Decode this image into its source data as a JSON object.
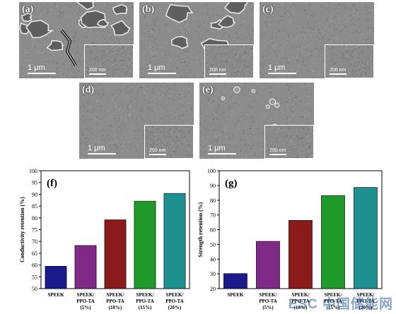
{
  "panels": [
    {
      "id": "a",
      "label": "(a)",
      "scale": "1 μm",
      "inset_scale": "200 nm",
      "texture": "rough"
    },
    {
      "id": "b",
      "label": "(b)",
      "scale": "1 μm",
      "inset_scale": "200 nm",
      "texture": "medium"
    },
    {
      "id": "c",
      "label": "(c)",
      "scale": "1 μm",
      "inset_scale": "200 nm",
      "texture": "smooth"
    },
    {
      "id": "d",
      "label": "(d)",
      "scale": "1 μm",
      "inset_scale": "200 nm",
      "texture": "smooth"
    },
    {
      "id": "e",
      "label": "(e)",
      "scale": "1 μm",
      "inset_scale": "200 nm",
      "texture": "particles"
    }
  ],
  "colors": {
    "speek": "#1a1a8c",
    "ppo5": "#7f2a86",
    "ppo10": "#8b1a1a",
    "ppo15": "#1f9a2a",
    "ppo20": "#1f9090"
  },
  "chart_data": [
    {
      "type": "bar",
      "panel_label": "(f)",
      "ylabel": "Conductivity retention (%)",
      "ylim": [
        50,
        100
      ],
      "yticks": [
        50,
        55,
        60,
        65,
        70,
        75,
        80,
        85,
        90,
        95,
        100
      ],
      "categories": [
        [
          "SPEEK"
        ],
        [
          "SPEEK/",
          "PPO-TA",
          "(5%)"
        ],
        [
          "SPEEK/",
          "PPO-TA",
          "(10%)"
        ],
        [
          "SPEEK/",
          "PPO-TA",
          "(15%)"
        ],
        [
          "SPEEK/",
          "PPO-TA",
          "(20%)"
        ]
      ],
      "values": [
        59.5,
        68.3,
        79.2,
        87.1,
        90.4
      ]
    },
    {
      "type": "bar",
      "panel_label": "(g)",
      "ylabel": "Strength retention (%)",
      "ylim": [
        20,
        100
      ],
      "yticks": [
        20,
        30,
        40,
        50,
        60,
        70,
        80,
        90,
        100
      ],
      "categories": [
        [
          "SPEEK"
        ],
        [
          "SPEEK/",
          "PPO-TA",
          "(5%)"
        ],
        [
          "SPEEK/",
          "PPO-TA",
          "(10%)"
        ],
        [
          "SPEEK/",
          "PPO-TA",
          "(15%)"
        ],
        [
          "SPEEK/",
          "PPO-TA",
          "(20%)"
        ]
      ],
      "values": [
        30.2,
        52.1,
        66.3,
        83.2,
        88.7
      ]
    }
  ],
  "watermark": "ESC 中国储能网"
}
